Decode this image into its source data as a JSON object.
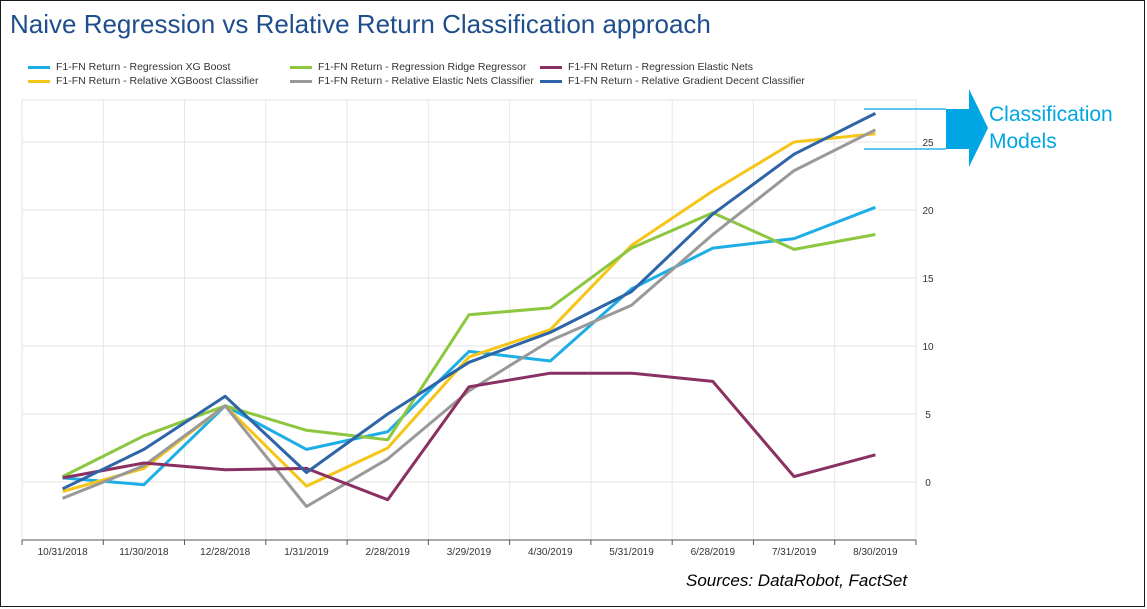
{
  "title": "Naive Regression vs Relative Return Classification approach",
  "annotation": {
    "line1": "Classification",
    "line2": "Models",
    "color": "#00a6e3"
  },
  "source": "Sources: DataRobot, FactSet",
  "chart_data": {
    "type": "line",
    "title": "Naive Regression vs Relative Return Classification approach",
    "xlabel": "",
    "ylabel": "",
    "categories": [
      "10/31/2018",
      "11/30/2018",
      "12/28/2018",
      "1/31/2019",
      "2/28/2019",
      "3/29/2019",
      "4/30/2019",
      "5/31/2019",
      "6/28/2019",
      "7/31/2019",
      "8/30/2019"
    ],
    "ylim": [
      -4,
      29
    ],
    "yticks": [
      0,
      5,
      10,
      15,
      20,
      25
    ],
    "y_axis_position": "right",
    "grid": true,
    "legend_position": "top-left",
    "series": [
      {
        "name": "F1-FN Return - Regression XG Boost",
        "color": "#1eaee6",
        "values": [
          0.3,
          -0.2,
          5.6,
          2.4,
          3.7,
          9.6,
          8.9,
          14.2,
          17.2,
          17.9,
          20.2
        ]
      },
      {
        "name": "F1-FN Return - Relative XGBoost Classifier",
        "color": "#f5c518",
        "values": [
          -0.7,
          1.0,
          5.6,
          -0.3,
          2.5,
          9.2,
          11.2,
          17.4,
          21.4,
          25.0,
          25.6
        ]
      },
      {
        "name": "F1-FN Return - Regression Ridge Regressor",
        "color": "#8dc63f",
        "values": [
          0.4,
          3.4,
          5.6,
          3.8,
          3.1,
          12.3,
          12.8,
          17.2,
          19.8,
          17.1,
          18.2
        ]
      },
      {
        "name": "F1-FN Return - Relative Elastic Nets Classifier",
        "color": "#999999",
        "values": [
          -1.2,
          1.2,
          5.6,
          -1.8,
          1.7,
          6.7,
          10.4,
          13.0,
          18.2,
          22.9,
          25.9
        ]
      },
      {
        "name": "F1-FN Return - Regression Elastic Nets",
        "color": "#8b3062",
        "values": [
          0.3,
          1.4,
          0.9,
          1.0,
          -1.3,
          7.0,
          8.0,
          8.0,
          7.4,
          0.4,
          2.0
        ]
      },
      {
        "name": "F1-FN Return - Relative Gradient Decent Classifier",
        "color": "#2e64a8",
        "values": [
          -0.5,
          2.4,
          6.3,
          0.7,
          5.0,
          8.8,
          11.0,
          14.0,
          19.7,
          24.1,
          27.1
        ]
      }
    ]
  }
}
